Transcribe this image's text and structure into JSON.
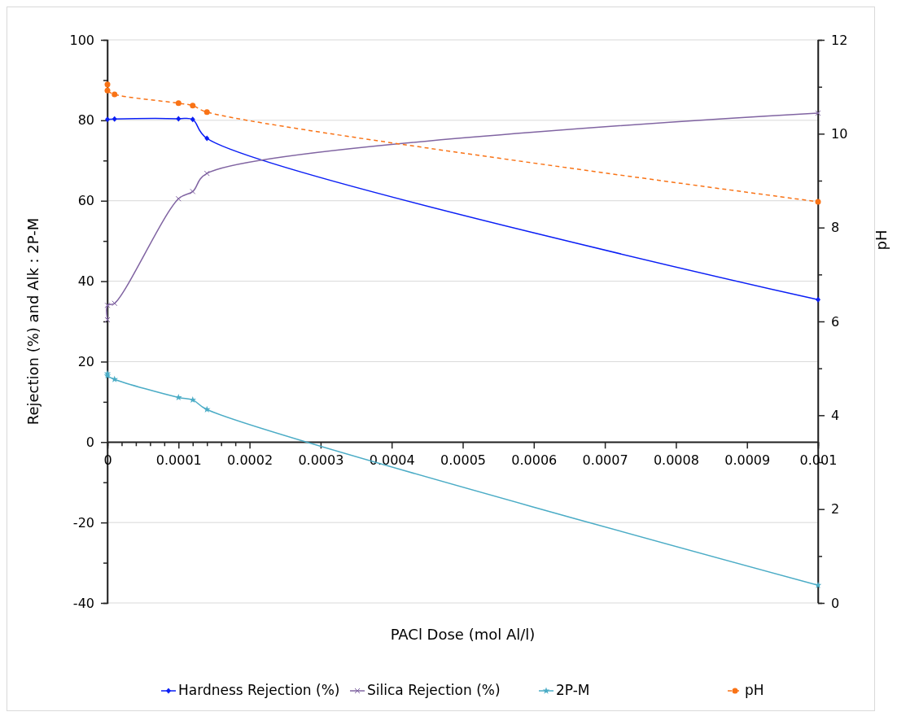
{
  "chart_data": {
    "type": "line",
    "xlabel": "PACl Dose (mol Al/l)",
    "ylabel": "Rejection (%) and Alk : 2P-M",
    "y2label": "pH",
    "xlim": [
      0,
      0.001
    ],
    "xticks": [
      0,
      {
        "value": 2e-05,
        "label": null
      },
      {
        "value": 4e-05,
        "label": null
      },
      {
        "value": 6e-05,
        "label": null
      },
      {
        "value": 8e-05,
        "label": null
      },
      0.0001,
      {
        "value": 0.00012,
        "label": null
      },
      {
        "value": 0.00014,
        "label": null
      },
      {
        "value": 0.00016,
        "label": null
      },
      {
        "value": 0.00018,
        "label": null
      },
      0.0002,
      0.0003,
      0.0004,
      0.0005,
      0.0006,
      0.0007,
      0.0008,
      0.0009,
      0.001
    ],
    "ylim": [
      -40,
      100
    ],
    "yticks": [
      -40,
      {
        "value": -30,
        "label": null
      },
      -20,
      {
        "value": -10,
        "label": null
      },
      0,
      {
        "value": 10,
        "label": null
      },
      20,
      {
        "value": 30,
        "label": null
      },
      40,
      {
        "value": 50,
        "label": null
      },
      60,
      {
        "value": 70,
        "label": null
      },
      80,
      {
        "value": 90,
        "label": null
      },
      100
    ],
    "y2lim": [
      0,
      12
    ],
    "y2ticks": [
      0,
      {
        "value": 1,
        "label": null
      },
      2,
      {
        "value": 3,
        "label": null
      },
      4,
      {
        "value": 5,
        "label": null
      },
      6,
      {
        "value": 7,
        "label": null
      },
      8,
      {
        "value": 9,
        "label": null
      },
      10,
      {
        "value": 11,
        "label": null
      },
      12
    ],
    "grid": "y",
    "legend": "bottom",
    "series": [
      {
        "name": "Hardness Rejection (%)",
        "color": "#0a1ef5",
        "marker": "diamond",
        "line_style": "solid",
        "x": [
          0,
          1e-05,
          0.0001,
          0.00012,
          0.00014,
          0.001
        ],
        "values": [
          80.2,
          80.3,
          80.4,
          80.2,
          75.5,
          35.4
        ]
      },
      {
        "name": "Silica Rejection (%)",
        "color": "#8064a2",
        "marker": "cross",
        "line_style": "solid",
        "x": [
          0,
          0,
          1e-05,
          0.0001,
          0.00012,
          0.00014,
          0.001
        ],
        "values": [
          30.4,
          34.0,
          34.5,
          60.5,
          62.3,
          66.8,
          81.8
        ]
      },
      {
        "name": "2P-M",
        "color": "#4bacc6",
        "marker": "star",
        "line_style": "solid",
        "x": [
          0,
          0,
          1e-05,
          0.0001,
          0.00012,
          0.00014,
          0.001
        ],
        "values": [
          17.0,
          16.5,
          15.6,
          11.1,
          10.5,
          8.1,
          -35.6
        ]
      },
      {
        "name": "pH",
        "color": "#f97316",
        "marker": "circle",
        "line_style": "dashed",
        "axis": "y2",
        "x": [
          0,
          0,
          1e-05,
          0.0001,
          0.00012,
          0.00014,
          0.001
        ],
        "values": [
          11.05,
          10.92,
          10.84,
          10.65,
          10.6,
          10.46,
          8.55
        ]
      }
    ]
  }
}
